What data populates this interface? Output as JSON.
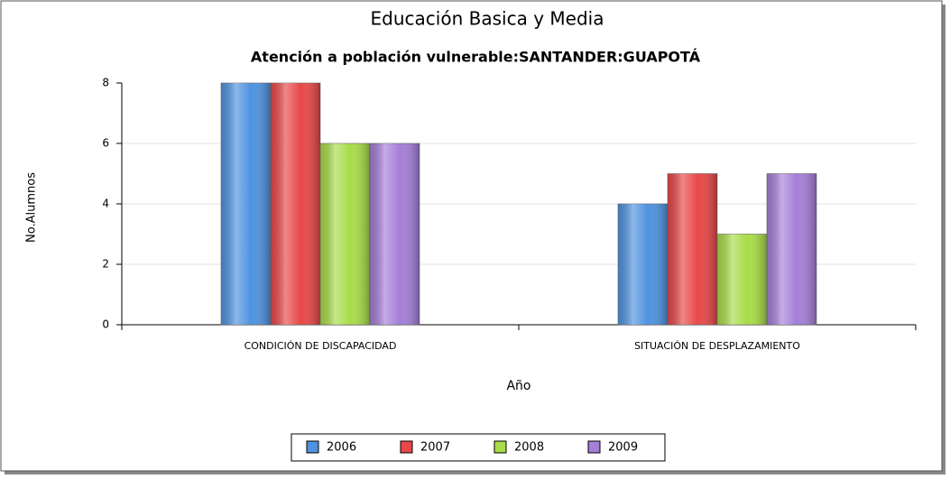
{
  "chart_data": {
    "type": "bar",
    "title": "Educación Basica y Media",
    "subtitle": "Atención a población vulnerable:SANTANDER:GUAPOTÁ",
    "x_label": "Año",
    "y_label": "No.Alumnos",
    "categories": [
      "CONDICIÓN DE DISCAPACIDAD",
      "SITUACIÓN DE DESPLAZAMIENTO"
    ],
    "series": [
      {
        "name": "2006",
        "color": "#4f93e0",
        "values": [
          8,
          4
        ]
      },
      {
        "name": "2007",
        "color": "#e84848",
        "values": [
          8,
          5
        ]
      },
      {
        "name": "2008",
        "color": "#a8dc48",
        "values": [
          6,
          3
        ]
      },
      {
        "name": "2009",
        "color": "#a57ed8",
        "values": [
          6,
          5
        ]
      }
    ],
    "ylim": [
      0,
      8
    ],
    "yticks": [
      0,
      2,
      4,
      6,
      8
    ],
    "grid": true,
    "legend": "bottom"
  }
}
